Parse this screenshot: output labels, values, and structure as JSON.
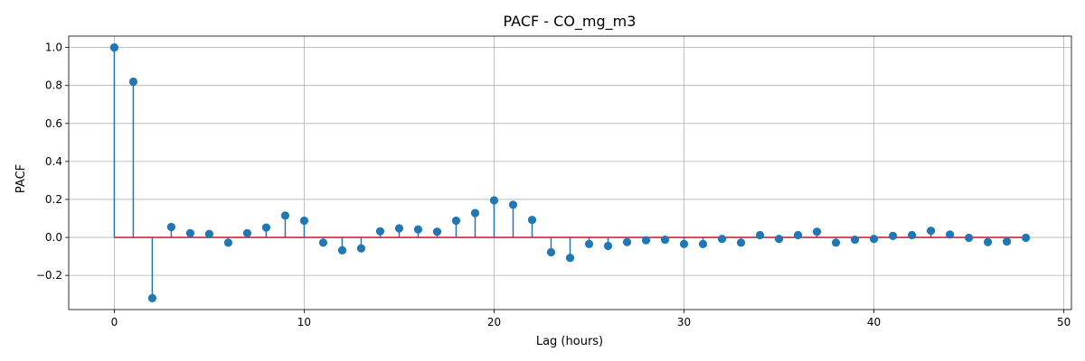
{
  "chart_data": {
    "type": "stem",
    "title": "PACF - CO_mg_m3",
    "xlabel": "Lag (hours)",
    "ylabel": "PACF",
    "xlim": [
      -2.4,
      50.4
    ],
    "ylim": [
      -0.38,
      1.06
    ],
    "x_ticks": [
      0,
      10,
      20,
      30,
      40,
      50
    ],
    "y_ticks": [
      -0.2,
      0.0,
      0.2,
      0.4,
      0.6,
      0.8,
      1.0
    ],
    "x_tick_labels": [
      "0",
      "10",
      "20",
      "30",
      "40",
      "50"
    ],
    "y_tick_labels": [
      "−0.2",
      "0.0",
      "0.2",
      "0.4",
      "0.6",
      "0.8",
      "1.0"
    ],
    "grid": true,
    "baseline": 0,
    "x": [
      0,
      1,
      2,
      3,
      4,
      5,
      6,
      7,
      8,
      9,
      10,
      11,
      12,
      13,
      14,
      15,
      16,
      17,
      18,
      19,
      20,
      21,
      22,
      23,
      24,
      25,
      26,
      27,
      28,
      29,
      30,
      31,
      32,
      33,
      34,
      35,
      36,
      37,
      38,
      39,
      40,
      41,
      42,
      43,
      44,
      45,
      46,
      47,
      48
    ],
    "values": [
      1.0,
      0.82,
      -0.32,
      0.055,
      0.022,
      0.018,
      -0.028,
      0.022,
      0.052,
      0.115,
      0.088,
      -0.028,
      -0.068,
      -0.058,
      0.032,
      0.048,
      0.042,
      0.03,
      0.088,
      0.128,
      0.195,
      0.172,
      0.092,
      -0.078,
      -0.108,
      -0.035,
      -0.045,
      -0.025,
      -0.015,
      -0.012,
      -0.035,
      -0.035,
      -0.008,
      -0.028,
      0.012,
      -0.008,
      0.012,
      0.03,
      -0.028,
      -0.012,
      -0.008,
      0.008,
      0.012,
      0.035,
      0.015,
      -0.002,
      -0.025,
      -0.022,
      -0.002
    ]
  },
  "colors": {
    "marker": "#1f77b4",
    "stem": "#1f77b4",
    "baseline": "#d62728"
  }
}
